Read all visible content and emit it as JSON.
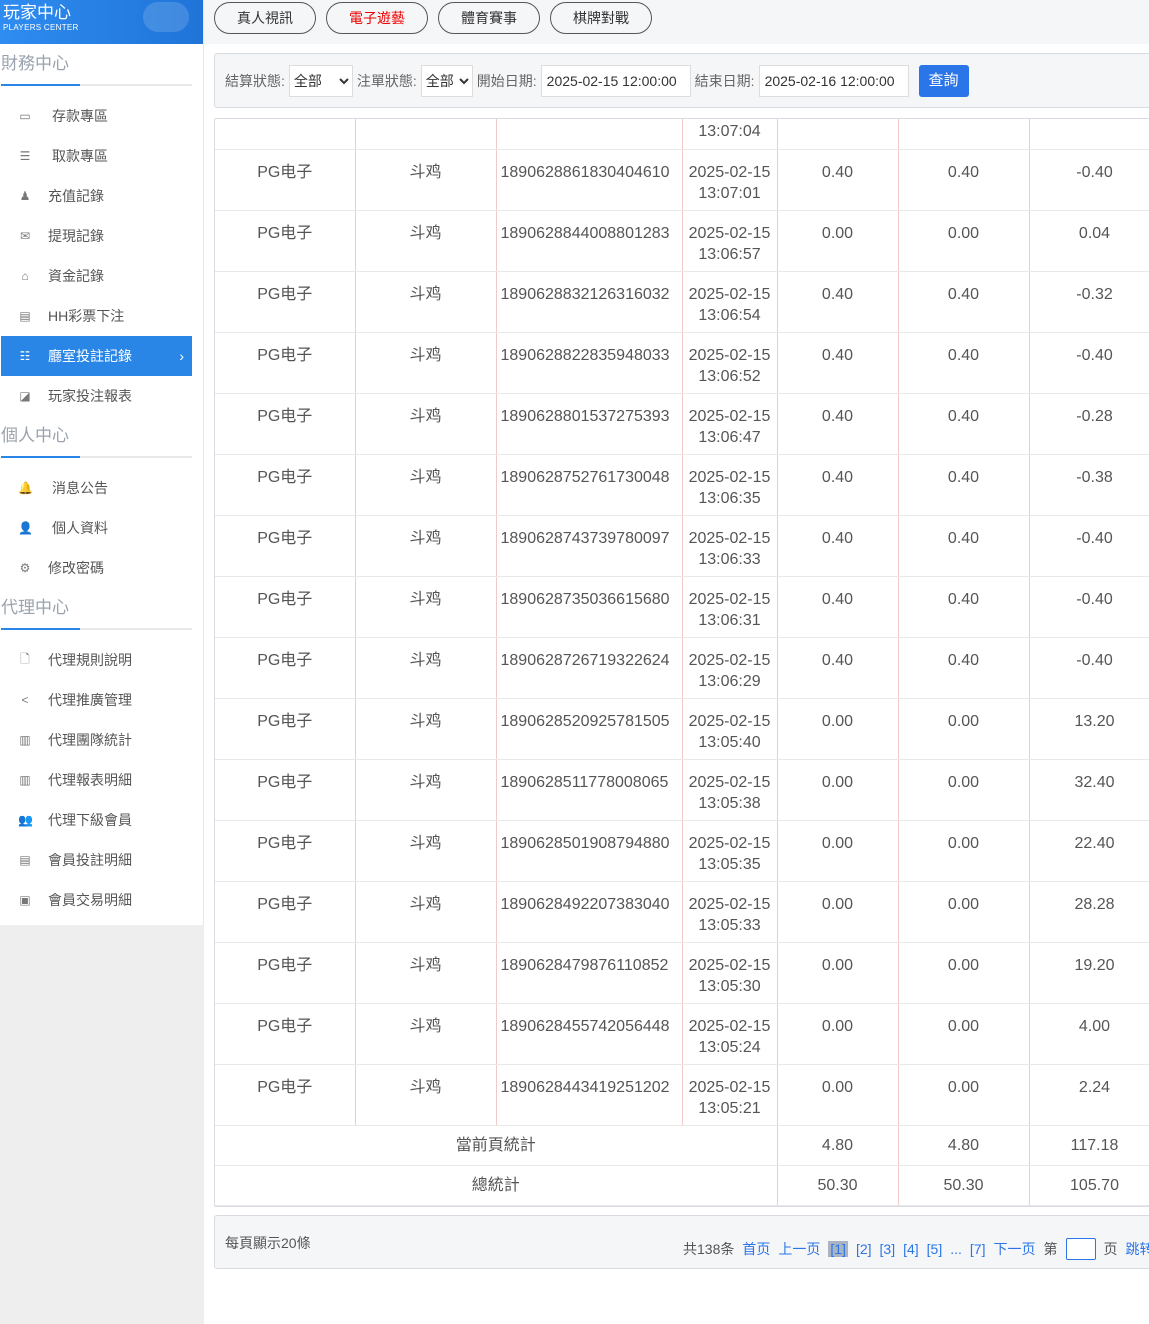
{
  "logo": {
    "title": "玩家中心",
    "subtitle": "PLAYERS CENTER"
  },
  "sidebar": {
    "sections": [
      {
        "title": "財務中心",
        "items": [
          {
            "label": "存款專區",
            "icon": "card-icon",
            "glyph": "▭",
            "wide": true
          },
          {
            "label": "取款專區",
            "icon": "hand-money-icon",
            "glyph": "☰",
            "wide": true
          },
          {
            "label": "充值記錄",
            "icon": "money-bag-icon",
            "glyph": "♟"
          },
          {
            "label": "提現記錄",
            "icon": "envelope-icon",
            "glyph": "✉"
          },
          {
            "label": "資金記錄",
            "icon": "bank-icon",
            "glyph": "⌂"
          },
          {
            "label": "HH彩票下注",
            "icon": "list-alt-icon",
            "glyph": "▤"
          },
          {
            "label": "廳室投註記錄",
            "icon": "list-icon",
            "glyph": "☷",
            "active": true
          },
          {
            "label": "玩家投注報表",
            "icon": "chart-icon",
            "glyph": "◪"
          }
        ]
      },
      {
        "title": "個人中心",
        "items": [
          {
            "label": "消息公告",
            "icon": "bell-icon",
            "glyph": "🔔",
            "wide": true
          },
          {
            "label": "個人資料",
            "icon": "user-icon",
            "glyph": "👤",
            "wide": true
          },
          {
            "label": "修改密碼",
            "icon": "gear-icon",
            "glyph": "⚙"
          }
        ]
      },
      {
        "title": "代理中心",
        "items": [
          {
            "label": "代理規則說明",
            "icon": "file-icon",
            "glyph": "🗋"
          },
          {
            "label": "代理推廣管理",
            "icon": "share-icon",
            "glyph": "<"
          },
          {
            "label": "代理團隊統計",
            "icon": "book-icon",
            "glyph": "▥"
          },
          {
            "label": "代理報表明細",
            "icon": "book-icon",
            "glyph": "▥"
          },
          {
            "label": "代理下級會員",
            "icon": "users-icon",
            "glyph": "👥"
          },
          {
            "label": "會員投註明細",
            "icon": "clipboard-icon",
            "glyph": "▤"
          },
          {
            "label": "會員交易明細",
            "icon": "list-box-icon",
            "glyph": "▣"
          }
        ]
      }
    ]
  },
  "tabs": [
    {
      "label": "真人視訊"
    },
    {
      "label": "電子遊藝",
      "active": true
    },
    {
      "label": "體育賽事"
    },
    {
      "label": "棋牌對戰"
    }
  ],
  "filter": {
    "settle_label": "結算狀態:",
    "settle_value": "全部",
    "order_label": "注單狀態:",
    "order_value": "全部",
    "start_label": "開始日期:",
    "start_value": "2025-02-15 12:00:00",
    "end_label": "結束日期:",
    "end_value": "2025-02-16 12:00:00",
    "query": "查詢"
  },
  "table": {
    "partial_time": "13:07:04",
    "rows": [
      [
        "PG电子",
        "斗鸡",
        "1890628861830404610",
        "2025-02-15",
        "13:07:01",
        "0.40",
        "0.40",
        "-0.40"
      ],
      [
        "PG电子",
        "斗鸡",
        "1890628844008801283",
        "2025-02-15",
        "13:06:57",
        "0.00",
        "0.00",
        "0.04"
      ],
      [
        "PG电子",
        "斗鸡",
        "1890628832126316032",
        "2025-02-15",
        "13:06:54",
        "0.40",
        "0.40",
        "-0.32"
      ],
      [
        "PG电子",
        "斗鸡",
        "1890628822835948033",
        "2025-02-15",
        "13:06:52",
        "0.40",
        "0.40",
        "-0.40"
      ],
      [
        "PG电子",
        "斗鸡",
        "1890628801537275393",
        "2025-02-15",
        "13:06:47",
        "0.40",
        "0.40",
        "-0.28"
      ],
      [
        "PG电子",
        "斗鸡",
        "1890628752761730048",
        "2025-02-15",
        "13:06:35",
        "0.40",
        "0.40",
        "-0.38"
      ],
      [
        "PG电子",
        "斗鸡",
        "1890628743739780097",
        "2025-02-15",
        "13:06:33",
        "0.40",
        "0.40",
        "-0.40"
      ],
      [
        "PG电子",
        "斗鸡",
        "1890628735036615680",
        "2025-02-15",
        "13:06:31",
        "0.40",
        "0.40",
        "-0.40"
      ],
      [
        "PG电子",
        "斗鸡",
        "1890628726719322624",
        "2025-02-15",
        "13:06:29",
        "0.40",
        "0.40",
        "-0.40"
      ],
      [
        "PG电子",
        "斗鸡",
        "1890628520925781505",
        "2025-02-15",
        "13:05:40",
        "0.00",
        "0.00",
        "13.20"
      ],
      [
        "PG电子",
        "斗鸡",
        "1890628511778008065",
        "2025-02-15",
        "13:05:38",
        "0.00",
        "0.00",
        "32.40"
      ],
      [
        "PG电子",
        "斗鸡",
        "1890628501908794880",
        "2025-02-15",
        "13:05:35",
        "0.00",
        "0.00",
        "22.40"
      ],
      [
        "PG电子",
        "斗鸡",
        "1890628492207383040",
        "2025-02-15",
        "13:05:33",
        "0.00",
        "0.00",
        "28.28"
      ],
      [
        "PG电子",
        "斗鸡",
        "1890628479876110852",
        "2025-02-15",
        "13:05:30",
        "0.00",
        "0.00",
        "19.20"
      ],
      [
        "PG电子",
        "斗鸡",
        "1890628455742056448",
        "2025-02-15",
        "13:05:24",
        "0.00",
        "0.00",
        "4.00"
      ],
      [
        "PG电子",
        "斗鸡",
        "1890628443419251202",
        "2025-02-15",
        "13:05:21",
        "0.00",
        "0.00",
        "2.24"
      ]
    ],
    "summary": [
      {
        "label": "當前頁統計",
        "values": [
          "4.80",
          "4.80",
          "117.18"
        ]
      },
      {
        "label": "總統計",
        "values": [
          "50.30",
          "50.30",
          "105.70"
        ]
      }
    ]
  },
  "pager": {
    "per_page": "每頁顯示20條",
    "total": "共138条",
    "first": "首页",
    "prev": "上一页",
    "pages": [
      "[1]",
      "[2]",
      "[3]",
      "[4]",
      "[5]"
    ],
    "ellipsis": "...",
    "last_page": "[7]",
    "next": "下一页",
    "goto_prefix": "第",
    "goto_suffix": "页",
    "jump": "跳转"
  }
}
